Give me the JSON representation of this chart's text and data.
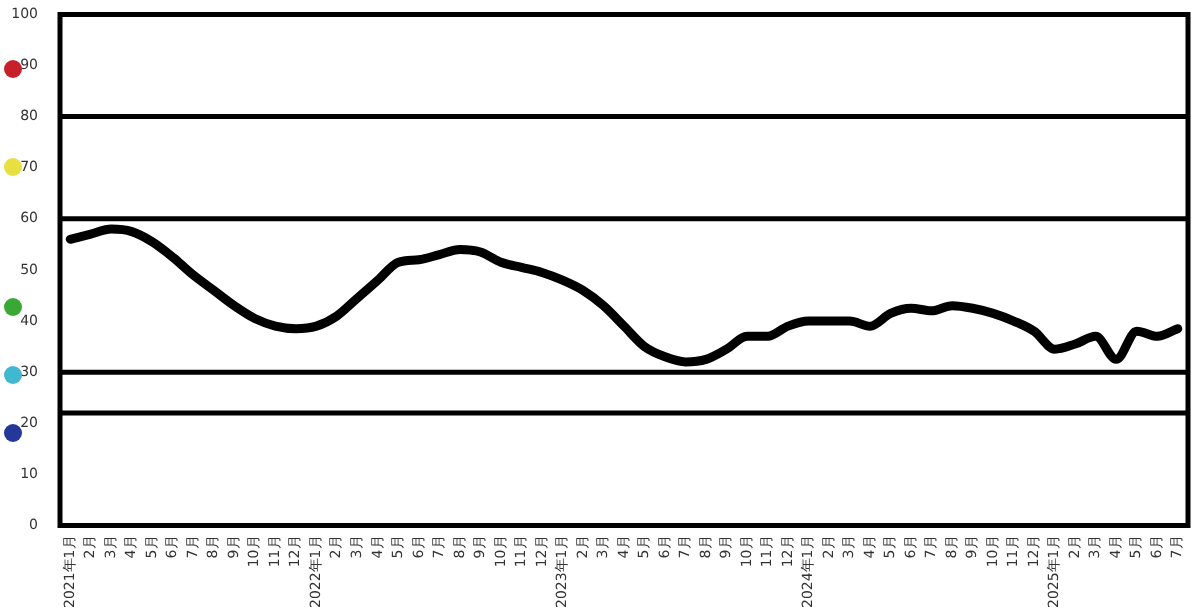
{
  "chart_data": {
    "type": "line",
    "categories": [
      "2021年1月",
      "2月",
      "3月",
      "4月",
      "5月",
      "6月",
      "7月",
      "8月",
      "9月",
      "10月",
      "11月",
      "12月",
      "2022年1月",
      "2月",
      "3月",
      "4月",
      "5月",
      "6月",
      "7月",
      "8月",
      "9月",
      "10月",
      "11月",
      "12月",
      "2023年1月",
      "2月",
      "3月",
      "4月",
      "5月",
      "6月",
      "7月",
      "8月",
      "9月",
      "10月",
      "11月",
      "12月",
      "2024年1月",
      "2月",
      "3月",
      "4月",
      "5月",
      "6月",
      "7月",
      "8月",
      "9月",
      "10月",
      "11月",
      "12月",
      "2025年1月",
      "2月",
      "3月",
      "4月",
      "5月",
      "6月",
      "7月"
    ],
    "series": [
      {
        "color": "#000000",
        "values": [
          56,
          57,
          58,
          57.5,
          55.5,
          52.5,
          49,
          46,
          43,
          40.5,
          39,
          38.5,
          39,
          41,
          44.5,
          48,
          51.5,
          52,
          53,
          54,
          53.5,
          51.5,
          50.5,
          49.5,
          48,
          46,
          43,
          39,
          35,
          33,
          32,
          32.5,
          34.5,
          37,
          37,
          39,
          40,
          40,
          40,
          39,
          41.5,
          42.5,
          42,
          43,
          42.5,
          41.5,
          40,
          38,
          34.5,
          35.5,
          37,
          32.5,
          38,
          37,
          38.5
        ]
      }
    ],
    "ylim": [
      0,
      100
    ],
    "yticks": [
      0,
      10,
      20,
      30,
      40,
      50,
      60,
      70,
      80,
      90,
      100
    ],
    "ref_lines": [
      {
        "axis": "y",
        "value": 80,
        "color": "#000000"
      },
      {
        "axis": "y",
        "value": 60,
        "color": "#000000"
      },
      {
        "axis": "y",
        "value": 30,
        "color": "#000000"
      },
      {
        "axis": "y",
        "value": 22,
        "color": "#000000"
      }
    ],
    "grid": false,
    "legend": false,
    "marker": "none",
    "line_style": "solid"
  }
}
